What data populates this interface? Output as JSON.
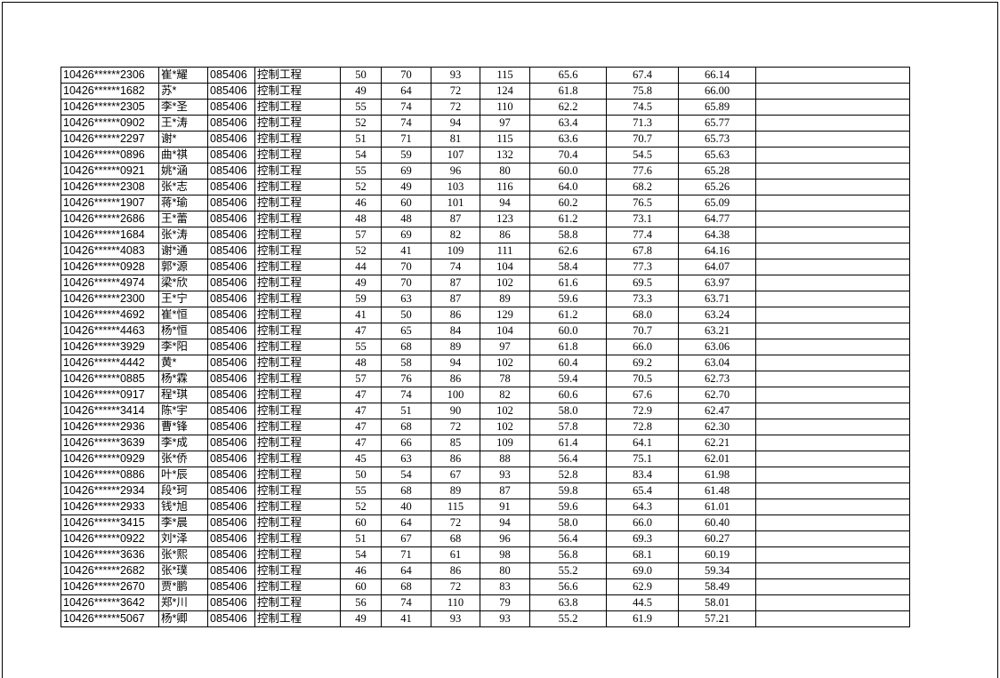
{
  "table": {
    "rows": [
      [
        "10426******2306",
        "崔*耀",
        "085406",
        "控制工程",
        "50",
        "70",
        "93",
        "115",
        "65.6",
        "67.4",
        "66.14",
        ""
      ],
      [
        "10426******1682",
        "苏*",
        "085406",
        "控制工程",
        "49",
        "64",
        "72",
        "124",
        "61.8",
        "75.8",
        "66.00",
        ""
      ],
      [
        "10426******2305",
        "李*圣",
        "085406",
        "控制工程",
        "55",
        "74",
        "72",
        "110",
        "62.2",
        "74.5",
        "65.89",
        ""
      ],
      [
        "10426******0902",
        "王*涛",
        "085406",
        "控制工程",
        "52",
        "74",
        "94",
        "97",
        "63.4",
        "71.3",
        "65.77",
        ""
      ],
      [
        "10426******2297",
        "谢*",
        "085406",
        "控制工程",
        "51",
        "71",
        "81",
        "115",
        "63.6",
        "70.7",
        "65.73",
        ""
      ],
      [
        "10426******0896",
        "曲*祺",
        "085406",
        "控制工程",
        "54",
        "59",
        "107",
        "132",
        "70.4",
        "54.5",
        "65.63",
        ""
      ],
      [
        "10426******0921",
        "姚*涵",
        "085406",
        "控制工程",
        "55",
        "69",
        "96",
        "80",
        "60.0",
        "77.6",
        "65.28",
        ""
      ],
      [
        "10426******2308",
        "张*志",
        "085406",
        "控制工程",
        "52",
        "49",
        "103",
        "116",
        "64.0",
        "68.2",
        "65.26",
        ""
      ],
      [
        "10426******1907",
        "蒋*瑜",
        "085406",
        "控制工程",
        "46",
        "60",
        "101",
        "94",
        "60.2",
        "76.5",
        "65.09",
        ""
      ],
      [
        "10426******2686",
        "王*蕾",
        "085406",
        "控制工程",
        "48",
        "48",
        "87",
        "123",
        "61.2",
        "73.1",
        "64.77",
        ""
      ],
      [
        "10426******1684",
        "张*涛",
        "085406",
        "控制工程",
        "57",
        "69",
        "82",
        "86",
        "58.8",
        "77.4",
        "64.38",
        ""
      ],
      [
        "10426******4083",
        "谢*通",
        "085406",
        "控制工程",
        "52",
        "41",
        "109",
        "111",
        "62.6",
        "67.8",
        "64.16",
        ""
      ],
      [
        "10426******0928",
        "郭*源",
        "085406",
        "控制工程",
        "44",
        "70",
        "74",
        "104",
        "58.4",
        "77.3",
        "64.07",
        ""
      ],
      [
        "10426******4974",
        "梁*欣",
        "085406",
        "控制工程",
        "49",
        "70",
        "87",
        "102",
        "61.6",
        "69.5",
        "63.97",
        ""
      ],
      [
        "10426******2300",
        "王*宁",
        "085406",
        "控制工程",
        "59",
        "63",
        "87",
        "89",
        "59.6",
        "73.3",
        "63.71",
        ""
      ],
      [
        "10426******4692",
        "崔*恒",
        "085406",
        "控制工程",
        "41",
        "50",
        "86",
        "129",
        "61.2",
        "68.0",
        "63.24",
        ""
      ],
      [
        "10426******4463",
        "杨*恒",
        "085406",
        "控制工程",
        "47",
        "65",
        "84",
        "104",
        "60.0",
        "70.7",
        "63.21",
        ""
      ],
      [
        "10426******3929",
        "李*阳",
        "085406",
        "控制工程",
        "55",
        "68",
        "89",
        "97",
        "61.8",
        "66.0",
        "63.06",
        ""
      ],
      [
        "10426******4442",
        "黄*",
        "085406",
        "控制工程",
        "48",
        "58",
        "94",
        "102",
        "60.4",
        "69.2",
        "63.04",
        ""
      ],
      [
        "10426******0885",
        "杨*霖",
        "085406",
        "控制工程",
        "57",
        "76",
        "86",
        "78",
        "59.4",
        "70.5",
        "62.73",
        ""
      ],
      [
        "10426******0917",
        "程*琪",
        "085406",
        "控制工程",
        "47",
        "74",
        "100",
        "82",
        "60.6",
        "67.6",
        "62.70",
        ""
      ],
      [
        "10426******3414",
        "陈*宇",
        "085406",
        "控制工程",
        "47",
        "51",
        "90",
        "102",
        "58.0",
        "72.9",
        "62.47",
        ""
      ],
      [
        "10426******2936",
        "曹*锋",
        "085406",
        "控制工程",
        "47",
        "68",
        "72",
        "102",
        "57.8",
        "72.8",
        "62.30",
        ""
      ],
      [
        "10426******3639",
        "李*成",
        "085406",
        "控制工程",
        "47",
        "66",
        "85",
        "109",
        "61.4",
        "64.1",
        "62.21",
        ""
      ],
      [
        "10426******0929",
        "张*侨",
        "085406",
        "控制工程",
        "45",
        "63",
        "86",
        "88",
        "56.4",
        "75.1",
        "62.01",
        ""
      ],
      [
        "10426******0886",
        "叶*辰",
        "085406",
        "控制工程",
        "50",
        "54",
        "67",
        "93",
        "52.8",
        "83.4",
        "61.98",
        ""
      ],
      [
        "10426******2934",
        "段*珂",
        "085406",
        "控制工程",
        "55",
        "68",
        "89",
        "87",
        "59.8",
        "65.4",
        "61.48",
        ""
      ],
      [
        "10426******2933",
        "钱*旭",
        "085406",
        "控制工程",
        "52",
        "40",
        "115",
        "91",
        "59.6",
        "64.3",
        "61.01",
        ""
      ],
      [
        "10426******3415",
        "李*晨",
        "085406",
        "控制工程",
        "60",
        "64",
        "72",
        "94",
        "58.0",
        "66.0",
        "60.40",
        ""
      ],
      [
        "10426******0922",
        "刘*泽",
        "085406",
        "控制工程",
        "51",
        "67",
        "68",
        "96",
        "56.4",
        "69.3",
        "60.27",
        ""
      ],
      [
        "10426******3636",
        "张*熙",
        "085406",
        "控制工程",
        "54",
        "71",
        "61",
        "98",
        "56.8",
        "68.1",
        "60.19",
        ""
      ],
      [
        "10426******2682",
        "张*璞",
        "085406",
        "控制工程",
        "46",
        "64",
        "86",
        "80",
        "55.2",
        "69.0",
        "59.34",
        ""
      ],
      [
        "10426******2670",
        "贾*鹏",
        "085406",
        "控制工程",
        "60",
        "68",
        "72",
        "83",
        "56.6",
        "62.9",
        "58.49",
        ""
      ],
      [
        "10426******3642",
        "郑*川",
        "085406",
        "控制工程",
        "56",
        "74",
        "110",
        "79",
        "63.8",
        "44.5",
        "58.01",
        ""
      ],
      [
        "10426******5067",
        "杨*卿",
        "085406",
        "控制工程",
        "49",
        "41",
        "93",
        "93",
        "55.2",
        "61.9",
        "57.21",
        ""
      ]
    ]
  }
}
